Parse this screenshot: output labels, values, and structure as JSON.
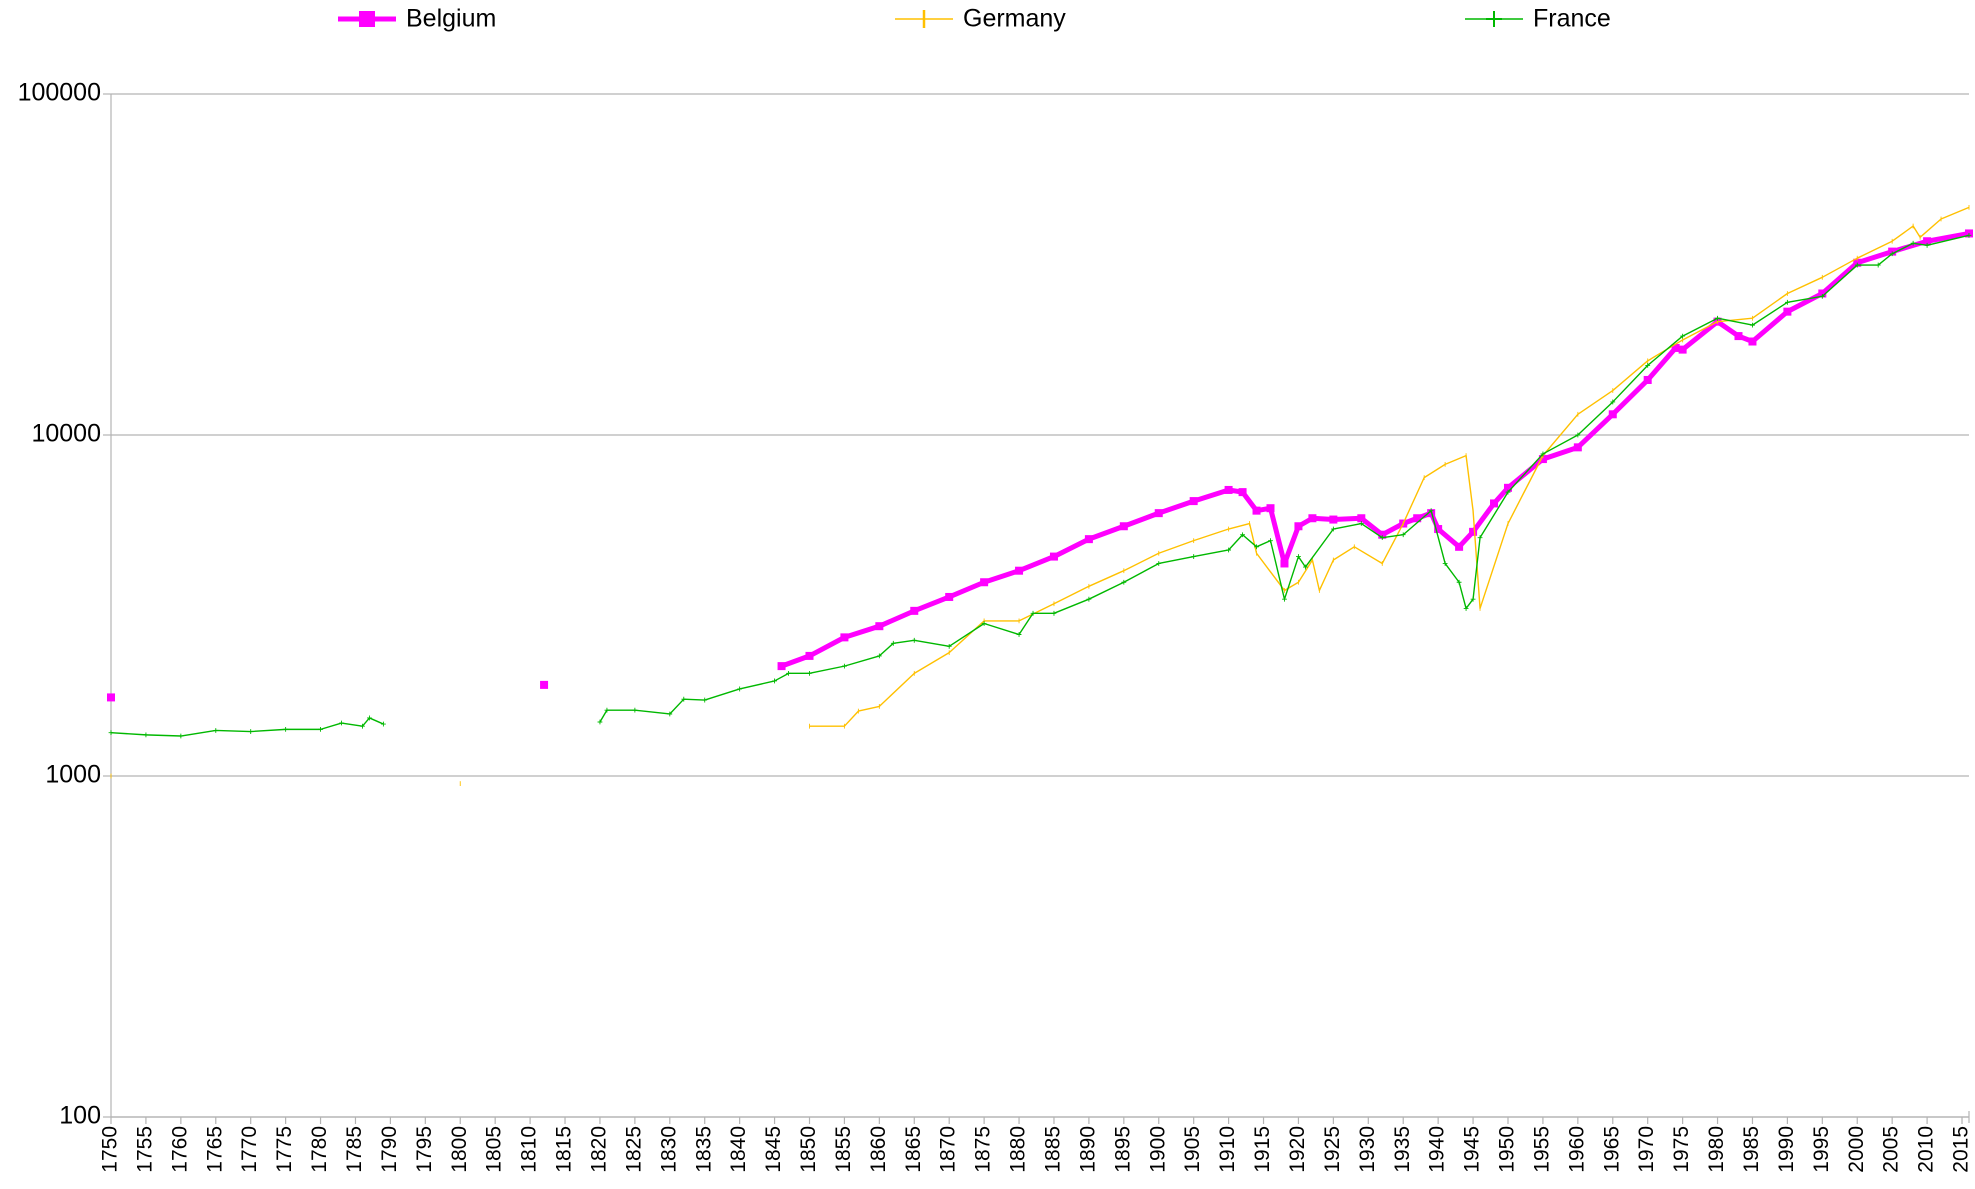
{
  "chart_data": {
    "type": "line",
    "legend": "top",
    "log_scale_y": true,
    "grid": true,
    "xlim": [
      1750,
      2016
    ],
    "xticks": [
      1750,
      1755,
      1760,
      1765,
      1770,
      1775,
      1780,
      1785,
      1790,
      1795,
      1800,
      1805,
      1810,
      1815,
      1820,
      1825,
      1830,
      1835,
      1840,
      1845,
      1850,
      1855,
      1860,
      1865,
      1870,
      1875,
      1880,
      1885,
      1890,
      1895,
      1900,
      1905,
      1910,
      1915,
      1920,
      1925,
      1930,
      1935,
      1940,
      1945,
      1950,
      1955,
      1960,
      1965,
      1970,
      1975,
      1980,
      1985,
      1990,
      1995,
      2000,
      2005,
      2010,
      2015
    ],
    "ylim": [
      100,
      100000
    ],
    "yticks": [
      100,
      1000,
      10000,
      100000
    ],
    "series": [
      {
        "name": "Belgium",
        "color": "#ff00ff",
        "marker": "square",
        "line_width": 5,
        "x": [
          1750,
          1751,
          1812,
          1813,
          1846,
          1850,
          1855,
          1860,
          1865,
          1870,
          1875,
          1880,
          1885,
          1890,
          1895,
          1900,
          1905,
          1910,
          1912,
          1914,
          1916,
          1918,
          1920,
          1922,
          1925,
          1929,
          1932,
          1935,
          1937,
          1939,
          1940,
          1943,
          1945,
          1948,
          1950,
          1955,
          1960,
          1965,
          1970,
          1974,
          1975,
          1980,
          1983,
          1985,
          1990,
          1995,
          2000,
          2005,
          2010,
          2016
        ],
        "values": [
          1700,
          null,
          1850,
          null,
          2100,
          2250,
          2550,
          2750,
          3050,
          3350,
          3700,
          4000,
          4400,
          4950,
          5400,
          5900,
          6400,
          6900,
          6800,
          6000,
          6100,
          4200,
          5400,
          5700,
          5650,
          5700,
          5100,
          5500,
          5700,
          5900,
          5300,
          4700,
          5200,
          6300,
          7000,
          8500,
          9200,
          11500,
          14500,
          18000,
          17800,
          21500,
          19500,
          18800,
          23000,
          26000,
          32000,
          34500,
          37000,
          39000
        ]
      },
      {
        "name": "Germany",
        "color": "#ffc000",
        "marker": "vbar",
        "line_width": 1.4,
        "x": [
          1750,
          1751,
          1800,
          1801,
          1850,
          1855,
          1857,
          1860,
          1865,
          1870,
          1875,
          1880,
          1885,
          1890,
          1895,
          1900,
          1905,
          1910,
          1913,
          1914,
          1918,
          1920,
          1922,
          1923,
          1925,
          1928,
          1932,
          1935,
          1938,
          1941,
          1944,
          1945,
          1946,
          1950,
          1955,
          1960,
          1965,
          1970,
          1975,
          1980,
          1985,
          1990,
          1995,
          2000,
          2005,
          2008,
          2009,
          2012,
          2016
        ],
        "values": [
          1000,
          null,
          950,
          null,
          1400,
          1400,
          1550,
          1600,
          2000,
          2300,
          2850,
          2850,
          3200,
          3600,
          4000,
          4500,
          4900,
          5300,
          5500,
          4500,
          3500,
          3700,
          4300,
          3500,
          4300,
          4700,
          4200,
          5500,
          7500,
          8200,
          8700,
          6000,
          3100,
          5500,
          8700,
          11500,
          13500,
          16500,
          19000,
          21500,
          22000,
          26000,
          29000,
          33000,
          37000,
          41000,
          38000,
          43000,
          46500
        ]
      },
      {
        "name": "France",
        "color": "#00b800",
        "marker": "plus",
        "line_width": 1.4,
        "x": [
          1750,
          1755,
          1760,
          1765,
          1770,
          1775,
          1780,
          1783,
          1786,
          1787,
          1789,
          1790,
          1820,
          1821,
          1825,
          1830,
          1832,
          1835,
          1840,
          1845,
          1847,
          1850,
          1855,
          1860,
          1862,
          1865,
          1870,
          1875,
          1880,
          1882,
          1885,
          1890,
          1895,
          1900,
          1905,
          1910,
          1912,
          1914,
          1916,
          1918,
          1920,
          1921,
          1925,
          1929,
          1932,
          1935,
          1939,
          1941,
          1943,
          1944,
          1945,
          1946,
          1950,
          1955,
          1960,
          1965,
          1970,
          1975,
          1980,
          1985,
          1990,
          1995,
          2000,
          2003,
          2005,
          2008,
          2010,
          2016
        ],
        "values": [
          1340,
          1320,
          1310,
          1360,
          1350,
          1370,
          1370,
          1430,
          1400,
          1480,
          1420,
          null,
          1440,
          1560,
          1560,
          1520,
          1680,
          1670,
          1800,
          1900,
          2000,
          2000,
          2100,
          2250,
          2450,
          2500,
          2400,
          2800,
          2600,
          3000,
          3000,
          3300,
          3700,
          4200,
          4400,
          4600,
          5100,
          4700,
          4900,
          3300,
          4400,
          4100,
          5300,
          5500,
          5000,
          5100,
          6000,
          4200,
          3700,
          3100,
          3300,
          5000,
          6800,
          8800,
          10000,
          12500,
          16000,
          19500,
          22000,
          21000,
          24500,
          25500,
          31500,
          31500,
          34000,
          36500,
          36000,
          38500
        ]
      }
    ]
  }
}
